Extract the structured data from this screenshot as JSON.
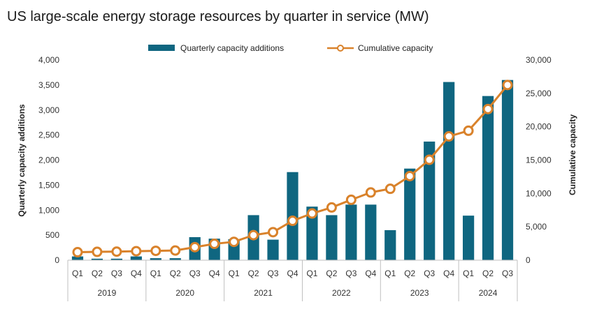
{
  "chart_data": {
    "type": "bar",
    "title": "US large-scale energy storage resources by quarter in service (MW)",
    "categories": [
      "Q1",
      "Q2",
      "Q3",
      "Q4",
      "Q1",
      "Q2",
      "Q3",
      "Q4",
      "Q1",
      "Q2",
      "Q3",
      "Q4",
      "Q1",
      "Q2",
      "Q3",
      "Q4",
      "Q1",
      "Q2",
      "Q3",
      "Q4",
      "Q1",
      "Q2",
      "Q3"
    ],
    "years": [
      "2019",
      "2020",
      "2021",
      "2022",
      "2023",
      "2024"
    ],
    "year_quarter_counts": [
      4,
      4,
      4,
      4,
      4,
      3
    ],
    "series": [
      {
        "name": "Quarterly capacity additions",
        "type": "bar",
        "axis": "left",
        "color": "#0f6680",
        "values": [
          75,
          30,
          30,
          75,
          40,
          40,
          460,
          430,
          420,
          900,
          410,
          1760,
          1070,
          900,
          1110,
          1110,
          600,
          1830,
          2370,
          3560,
          890,
          3280,
          3600
        ]
      },
      {
        "name": "Cumulative capacity",
        "type": "line",
        "axis": "right",
        "color": "#d9822b",
        "values": [
          1200,
          1250,
          1280,
          1350,
          1400,
          1450,
          1950,
          2450,
          2750,
          3750,
          4200,
          5900,
          7000,
          7900,
          9050,
          10150,
          10700,
          12600,
          15050,
          18550,
          19400,
          22650,
          26250
        ]
      }
    ],
    "ylabel": "Quarterly capacity additions",
    "y2label": "Cumulative capacity",
    "ylim": [
      0,
      4000
    ],
    "y2lim": [
      0,
      30000
    ],
    "yticks": [
      "0",
      "500",
      "1,000",
      "1,500",
      "2,000",
      "2,500",
      "3,000",
      "3,500",
      "4,000"
    ],
    "y2ticks": [
      "0",
      "5,000",
      "10,000",
      "15,000",
      "20,000",
      "25,000",
      "30,000"
    ],
    "legend": [
      "Quarterly capacity additions",
      "Cumulative capacity"
    ],
    "legend_position": "top-center",
    "grid": false
  }
}
